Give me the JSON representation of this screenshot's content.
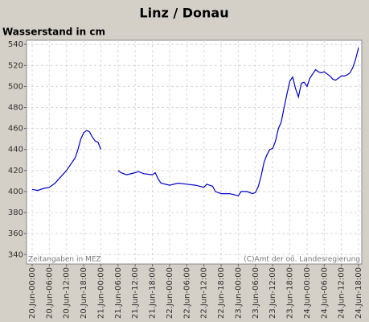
{
  "chart_data": {
    "type": "line",
    "title": "Linz / Donau",
    "y_label": "Wasserstand in cm",
    "annotations": [
      "Zeitangaben in MEZ",
      "(C)Amt der oö. Landesregierung"
    ],
    "color": "#0000cc",
    "grid": true,
    "x": [
      "20.Jun-00:00",
      "20.Jun-02:00",
      "20.Jun-04:00",
      "20.Jun-06:00",
      "20.Jun-08:00",
      "20.Jun-10:00",
      "20.Jun-12:00",
      "20.Jun-14:00",
      "20.Jun-15:00",
      "20.Jun-16:00",
      "20.Jun-17:00",
      "20.Jun-18:00",
      "20.Jun-19:00",
      "20.Jun-20:00",
      "20.Jun-21:00",
      "20.Jun-22:00",
      "20.Jun-23:00",
      "21.Jun-00:00",
      "21.Jun-03:00",
      "21.Jun-06:00",
      "21.Jun-07:00",
      "21.Jun-09:00",
      "21.Jun-12:00",
      "21.Jun-13:00",
      "21.Jun-15:00",
      "21.Jun-18:00",
      "21.Jun-19:00",
      "21.Jun-20:00",
      "21.Jun-21:00",
      "22.Jun-00:00",
      "22.Jun-03:00",
      "22.Jun-06:00",
      "22.Jun-09:00",
      "22.Jun-12:00",
      "22.Jun-13:00",
      "22.Jun-15:00",
      "22.Jun-16:00",
      "22.Jun-18:00",
      "22.Jun-21:00",
      "23.Jun-00:00",
      "23.Jun-01:00",
      "23.Jun-03:00",
      "23.Jun-05:00",
      "23.Jun-06:00",
      "23.Jun-07:00",
      "23.Jun-08:00",
      "23.Jun-09:00",
      "23.Jun-10:00",
      "23.Jun-11:00",
      "23.Jun-12:00",
      "23.Jun-13:00",
      "23.Jun-14:00",
      "23.Jun-15:00",
      "23.Jun-16:00",
      "23.Jun-17:00",
      "23.Jun-18:00",
      "23.Jun-19:00",
      "23.Jun-20:00",
      "23.Jun-21:00",
      "23.Jun-22:00",
      "23.Jun-23:00",
      "24.Jun-00:00",
      "24.Jun-01:00",
      "24.Jun-02:00",
      "24.Jun-03:00",
      "24.Jun-04:00",
      "24.Jun-05:00",
      "24.Jun-06:00",
      "24.Jun-07:00",
      "24.Jun-08:00",
      "24.Jun-09:00",
      "24.Jun-10:00",
      "24.Jun-11:00",
      "24.Jun-12:00",
      "24.Jun-13:00",
      "24.Jun-14:00",
      "24.Jun-15:00",
      "24.Jun-16:00",
      "24.Jun-17:00",
      "24.Jun-18:00"
    ],
    "values": [
      402,
      401,
      403,
      404,
      408,
      414,
      420,
      428,
      432,
      440,
      450,
      456,
      458,
      457,
      452,
      448,
      447,
      440,
      null,
      420,
      418,
      416,
      418,
      419,
      417,
      416,
      418,
      412,
      408,
      406,
      408,
      407,
      406,
      404,
      407,
      405,
      400,
      398,
      398,
      396,
      400,
      400,
      398,
      399,
      405,
      415,
      428,
      435,
      440,
      441,
      448,
      460,
      466,
      480,
      493,
      505,
      509,
      498,
      490,
      503,
      504,
      500,
      508,
      512,
      516,
      514,
      513,
      514,
      512,
      510,
      507,
      506,
      508,
      510,
      510,
      511,
      513,
      518,
      526,
      537
    ],
    "xlim": [
      "20.Jun-00:00",
      "24.Jun-18:00"
    ],
    "xticks": [
      "20.Jun-00:00",
      "20.Jun-06:00",
      "20.Jun-12:00",
      "20.Jun-18:00",
      "21.Jun-00:00",
      "21.Jun-06:00",
      "21.Jun-12:00",
      "21.Jun-18:00",
      "22.Jun-00:00",
      "22.Jun-06:00",
      "22.Jun-12:00",
      "22.Jun-18:00",
      "23.Jun-00:00",
      "23.Jun-06:00",
      "23.Jun-12:00",
      "23.Jun-18:00",
      "24.Jun-00:00",
      "24.Jun-06:00",
      "24.Jun-12:00",
      "24.Jun-18:00"
    ],
    "ylim": [
      331,
      544
    ],
    "yticks": [
      340,
      360,
      380,
      400,
      420,
      440,
      460,
      480,
      500,
      520,
      540
    ]
  }
}
